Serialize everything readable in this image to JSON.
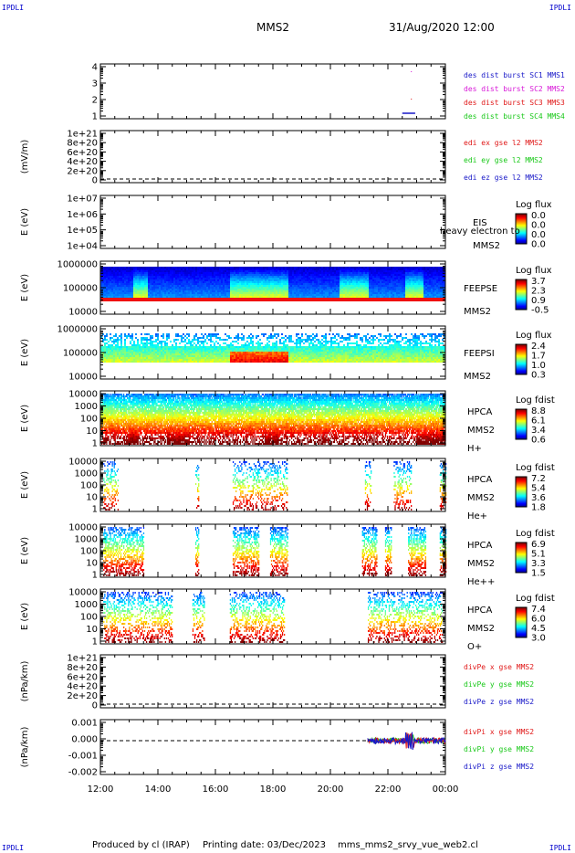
{
  "header": {
    "spacecraft": "MMS2",
    "datetime": "31/Aug/2020 12:00"
  },
  "corners": {
    "tl": "IPDLI",
    "tr": "IPDLI",
    "bl": "IPDLI",
    "br": "IPDLI"
  },
  "footer": {
    "produced": "Produced by cl (IRAP)",
    "printed": "Printing date: 03/Dec/2023",
    "file": "mms_mms2_srvy_vue_web2.cl"
  },
  "colors": {
    "red": "#e01818",
    "green": "#18c818",
    "blue": "#1818c8",
    "magenta": "#d818d8",
    "axis": "#000000"
  },
  "chart_data": [
    {
      "id": "p1",
      "type": "line",
      "yticks": [
        "1",
        "2",
        "3",
        "4"
      ],
      "legend": [
        {
          "text": "des dist burst SC1 MMS1",
          "color": "#1818c8"
        },
        {
          "text": "des dist burst SC2 MMS2",
          "color": "#d818d8"
        },
        {
          "text": "des dist burst SC3 MMS3",
          "color": "#e01818"
        },
        {
          "text": "des dist burst SC4 MMS4",
          "color": "#18c818"
        }
      ]
    },
    {
      "id": "p2",
      "type": "line",
      "ylabel": "(mV/m)",
      "yticks": [
        "0",
        "2e+20",
        "4e+20",
        "6e+20",
        "8e+20",
        "1e+21"
      ],
      "legend": [
        {
          "text": "edi ex gse l2 MMS2",
          "color": "#e01818"
        },
        {
          "text": "edi ey gse l2 MMS2",
          "color": "#18c818"
        },
        {
          "text": "edi ez gse l2 MMS2",
          "color": "#1818c8"
        }
      ]
    },
    {
      "id": "p3",
      "type": "heatmap",
      "ylabel": "E (eV)",
      "yticks": [
        "1e+04",
        "1e+05",
        "1e+06",
        "1e+07"
      ],
      "instrument": [
        "EIS",
        "MMS2"
      ],
      "overlay": "heavy electron to",
      "cbar_title": "Log flux",
      "cbar_ticks": [
        "0.0",
        "0.0",
        "0.0",
        "0.0"
      ]
    },
    {
      "id": "p4",
      "type": "heatmap",
      "ylabel": "E (eV)",
      "yticks": [
        "10000",
        "100000",
        "1000000"
      ],
      "instrument": [
        "FEEPSE",
        "MMS2"
      ],
      "cbar_title": "Log flux",
      "cbar_ticks": [
        "3.7",
        "2.3",
        "0.9",
        "-0.5"
      ]
    },
    {
      "id": "p5",
      "type": "heatmap",
      "ylabel": "E (eV)",
      "yticks": [
        "10000",
        "100000",
        "1000000"
      ],
      "instrument": [
        "FEEPSI",
        "MMS2"
      ],
      "cbar_title": "Log flux",
      "cbar_ticks": [
        "2.4",
        "1.7",
        "1.0",
        "0.3"
      ]
    },
    {
      "id": "p6",
      "type": "heatmap",
      "ylabel": "E (eV)",
      "yticks": [
        "1",
        "10",
        "100",
        "1000",
        "10000"
      ],
      "instrument": [
        "HPCA",
        "MMS2",
        "H+"
      ],
      "cbar_title": "Log fdist",
      "cbar_ticks": [
        "8.8",
        "6.1",
        "3.4",
        "0.6"
      ]
    },
    {
      "id": "p7",
      "type": "heatmap",
      "ylabel": "E (eV)",
      "yticks": [
        "1",
        "10",
        "100",
        "1000",
        "10000"
      ],
      "instrument": [
        "HPCA",
        "MMS2",
        "He+"
      ],
      "cbar_title": "Log fdist",
      "cbar_ticks": [
        "7.2",
        "5.4",
        "3.6",
        "1.8"
      ]
    },
    {
      "id": "p8",
      "type": "heatmap",
      "ylabel": "E (eV)",
      "yticks": [
        "1",
        "10",
        "100",
        "1000",
        "10000"
      ],
      "instrument": [
        "HPCA",
        "MMS2",
        "He++"
      ],
      "cbar_title": "Log fdist",
      "cbar_ticks": [
        "6.9",
        "5.1",
        "3.3",
        "1.5"
      ]
    },
    {
      "id": "p9",
      "type": "heatmap",
      "ylabel": "E (eV)",
      "yticks": [
        "1",
        "10",
        "100",
        "1000",
        "10000"
      ],
      "instrument": [
        "HPCA",
        "MMS2",
        "O+"
      ],
      "cbar_title": "Log fdist",
      "cbar_ticks": [
        "7.4",
        "6.0",
        "4.5",
        "3.0"
      ]
    },
    {
      "id": "p10",
      "type": "line",
      "ylabel": "(nPa/km)",
      "yticks": [
        "0",
        "2e+20",
        "4e+20",
        "6e+20",
        "8e+20",
        "1e+21"
      ],
      "legend": [
        {
          "text": "divPe x gse MMS2",
          "color": "#e01818"
        },
        {
          "text": "divPe y gse MMS2",
          "color": "#18c818"
        },
        {
          "text": "divPe z gse MMS2",
          "color": "#1818c8"
        }
      ]
    },
    {
      "id": "p11",
      "type": "line",
      "ylabel": "(nPa/km)",
      "yticks": [
        "-0.002",
        "-0.001",
        "0.000",
        "0.001"
      ],
      "legend": [
        {
          "text": "divPi x gse MMS2",
          "color": "#e01818"
        },
        {
          "text": "divPi y gse MMS2",
          "color": "#18c818"
        },
        {
          "text": "divPi z gse MMS2",
          "color": "#1818c8"
        }
      ]
    }
  ],
  "xaxis": {
    "ticks": [
      "12:00",
      "14:00",
      "16:00",
      "18:00",
      "20:00",
      "22:00",
      "00:00"
    ]
  }
}
